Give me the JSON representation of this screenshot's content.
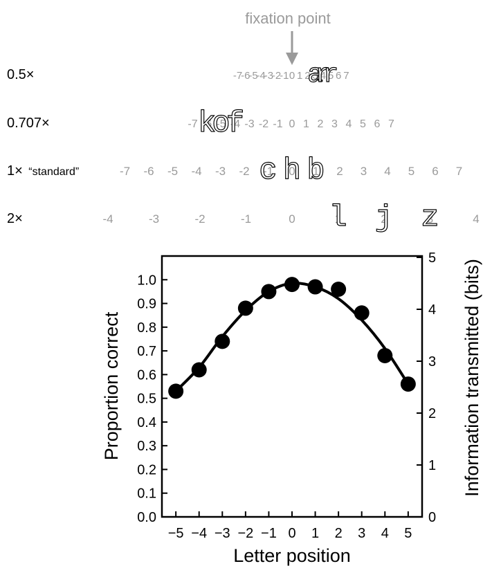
{
  "fixation": {
    "label": "fixation point"
  },
  "rows": [
    {
      "label": "0.5×",
      "sublabel": "",
      "positions": [
        -7,
        -6,
        -5,
        -4,
        -3,
        -2,
        -1,
        0,
        1,
        2,
        3,
        4,
        5,
        6,
        7
      ],
      "trigram": [
        "a",
        "r",
        "r"
      ],
      "trigram_positions": [
        3,
        4,
        5
      ]
    },
    {
      "label": "0.707×",
      "sublabel": "",
      "positions": [
        -7,
        -6,
        -5,
        -4,
        -3,
        -2,
        -1,
        0,
        1,
        2,
        3,
        4,
        5,
        6,
        7
      ],
      "trigram": [
        "k",
        "o",
        "f"
      ],
      "trigram_positions": [
        -6,
        -5,
        -4
      ]
    },
    {
      "label": "1×",
      "sublabel": "“standard”",
      "positions": [
        -7,
        -6,
        -5,
        -4,
        -3,
        -2,
        -1,
        0,
        1,
        2,
        3,
        4,
        5,
        6,
        7
      ],
      "trigram": [
        "c",
        "h",
        "b"
      ],
      "trigram_positions": [
        -1,
        0,
        1
      ]
    },
    {
      "label": "2×",
      "sublabel": "",
      "positions": [
        -4,
        -3,
        -2,
        -1,
        0,
        1,
        2,
        3,
        4
      ],
      "trigram": [
        "l",
        "j",
        "z"
      ],
      "trigram_positions": [
        1,
        2,
        3
      ]
    }
  ],
  "chart_data": {
    "type": "scatter",
    "xlabel": "Letter position",
    "ylabel": "Proportion correct",
    "y2label": "Information transmitted (bits)",
    "xlim": [
      -5.6,
      5.6
    ],
    "ylim": [
      0.0,
      1.1
    ],
    "y2lim": [
      0,
      5
    ],
    "x_ticks": [
      -5,
      -4,
      -3,
      -2,
      -1,
      0,
      1,
      2,
      3,
      4,
      5
    ],
    "x_tick_labels": [
      "−5",
      "−4",
      "−3",
      "−2",
      "−1",
      "0",
      "1",
      "2",
      "3",
      "4",
      "5"
    ],
    "y_ticks": [
      0.0,
      0.1,
      0.2,
      0.3,
      0.4,
      0.5,
      0.6,
      0.7,
      0.8,
      0.9,
      1.0
    ],
    "y_tick_labels": [
      "0.0",
      "0.1",
      "0.2",
      "0.3",
      "0.4",
      "0.5",
      "0.6",
      "0.7",
      "0.8",
      "0.9",
      "1.0"
    ],
    "y2_ticks": [
      0,
      1,
      2,
      3,
      4,
      5
    ],
    "y2_tick_labels": [
      "0",
      "1",
      "2",
      "3",
      "4",
      "5"
    ],
    "series": [
      {
        "kind": "points",
        "x": [
          -5,
          -4,
          -3,
          -2,
          -1,
          0,
          1,
          2,
          3,
          4,
          5
        ],
        "y": [
          0.53,
          0.62,
          0.74,
          0.88,
          0.95,
          0.98,
          0.97,
          0.96,
          0.86,
          0.68,
          0.56
        ],
        "color": "#000000"
      },
      {
        "kind": "line",
        "x": [
          -5,
          -4,
          -3,
          -2,
          -1,
          0,
          1,
          2,
          3,
          4,
          5
        ],
        "y": [
          0.53,
          0.63,
          0.76,
          0.87,
          0.95,
          0.985,
          0.97,
          0.92,
          0.83,
          0.71,
          0.56
        ],
        "color": "#000000"
      }
    ],
    "grid": false
  }
}
